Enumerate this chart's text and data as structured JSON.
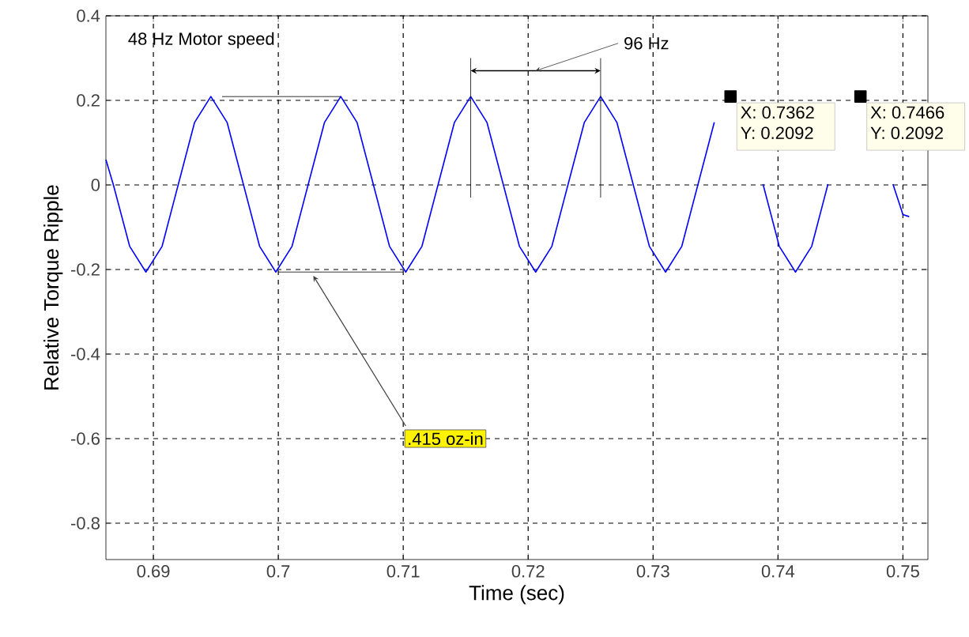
{
  "chart_data": {
    "type": "line",
    "xlabel": "Time  (sec)",
    "ylabel": "Relative Torque Ripple",
    "xlim": [
      0.6862,
      0.752
    ],
    "ylim": [
      -0.886,
      0.4
    ],
    "xticks": [
      0.69,
      0.7,
      0.71,
      0.72,
      0.73,
      0.74,
      0.75
    ],
    "yticks": [
      -0.8,
      -0.6,
      -0.4,
      -0.2,
      0,
      0.2,
      0.4
    ],
    "grid": true,
    "line_style": "solid",
    "series": [
      {
        "color": "#0000ff",
        "x": [
          0.6862,
          0.6868,
          0.6881,
          0.6894,
          0.6907,
          0.692,
          0.6933,
          0.6946,
          0.6959,
          0.6972,
          0.6985,
          0.6998,
          0.7011,
          0.7024,
          0.7037,
          0.705,
          0.7063,
          0.7076,
          0.7089,
          0.7102,
          0.7115,
          0.7128,
          0.7141,
          0.7154,
          0.7167,
          0.718,
          0.7193,
          0.7206,
          0.7219,
          0.7232,
          0.7245,
          0.7258,
          0.7271,
          0.7284,
          0.7297,
          0.731,
          0.7323,
          0.7336,
          0.7349,
          0.7362,
          0.7375,
          0.7388,
          0.7401,
          0.7414,
          0.7427,
          0.744,
          0.7453,
          0.7466,
          0.7479,
          0.7492,
          0.75,
          0.7505
        ],
        "values": [
          0.06,
          0.0,
          -0.145,
          -0.206,
          -0.145,
          0.002,
          0.148,
          0.209,
          0.148,
          0.002,
          -0.145,
          -0.206,
          -0.145,
          0.002,
          0.148,
          0.209,
          0.148,
          0.002,
          -0.145,
          -0.206,
          -0.145,
          0.002,
          0.148,
          0.209,
          0.148,
          0.002,
          -0.145,
          -0.206,
          -0.145,
          0.002,
          0.148,
          0.209,
          0.148,
          0.002,
          -0.145,
          -0.206,
          -0.145,
          0.002,
          0.148,
          null,
          null,
          0.002,
          -0.145,
          -0.206,
          -0.145,
          0.002,
          null,
          null,
          null,
          0.002,
          -0.07,
          -0.075
        ]
      },
      {
        "type": "scatter",
        "color": "#000000",
        "marker": "square",
        "x": [
          0.7362,
          0.7466
        ],
        "values": [
          0.2092,
          0.2092
        ]
      }
    ],
    "annotations": [
      "48 Hz Motor speed",
      "96 Hz",
      ".415 oz-in",
      "X: 0.7362",
      "Y: 0.2092",
      "X: 0.7466",
      "Y: 0.2092"
    ]
  }
}
